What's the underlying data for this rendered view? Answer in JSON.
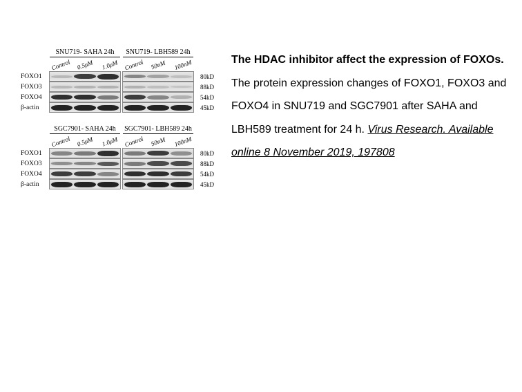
{
  "text": {
    "title": "The HDAC inhibitor affect the expression of FOXOs.",
    "body": "The protein expression changes of FOXO1, FOXO3 and FOXO4 in SNU719 and SGC7901 after SAHA and LBH589 treatment for 24 h. ",
    "citation": "Virus Research. Available online 8 November 2019, 197808"
  },
  "figure": {
    "panels": [
      {
        "headers": [
          "SNU719- SAHA 24h",
          "SNU719- LBH589 24h"
        ],
        "lanes_left": [
          "Control",
          "0.5μM",
          "1.0μM"
        ],
        "lanes_right": [
          "Control",
          "50nM",
          "100nM"
        ],
        "rows": [
          {
            "label": "FOXO1",
            "mw": "80kD",
            "bands_left": [
              {
                "i": 0.25,
                "h": 4
              },
              {
                "i": 0.85,
                "h": 7
              },
              {
                "i": 0.9,
                "h": 8
              }
            ],
            "bands_right": [
              {
                "i": 0.55,
                "h": 5
              },
              {
                "i": 0.4,
                "h": 5
              },
              {
                "i": 0.2,
                "h": 4
              }
            ]
          },
          {
            "label": "FOXO3",
            "mw": "88kD",
            "bands_left": [
              {
                "i": 0.25,
                "h": 4
              },
              {
                "i": 0.3,
                "h": 4
              },
              {
                "i": 0.3,
                "h": 4
              }
            ],
            "bands_right": [
              {
                "i": 0.3,
                "h": 4
              },
              {
                "i": 0.2,
                "h": 4
              },
              {
                "i": 0.15,
                "h": 3
              }
            ]
          },
          {
            "label": "FOXO4",
            "mw": "54kD",
            "bands_left": [
              {
                "i": 0.9,
                "h": 7
              },
              {
                "i": 0.9,
                "h": 7
              },
              {
                "i": 0.6,
                "h": 6
              }
            ],
            "bands_right": [
              {
                "i": 0.85,
                "h": 7
              },
              {
                "i": 0.55,
                "h": 6
              },
              {
                "i": 0.3,
                "h": 5
              }
            ]
          },
          {
            "label": "β-actin",
            "mw": "45kD",
            "bands_left": [
              {
                "i": 0.95,
                "h": 8
              },
              {
                "i": 0.95,
                "h": 8
              },
              {
                "i": 0.95,
                "h": 8
              }
            ],
            "bands_right": [
              {
                "i": 0.95,
                "h": 8
              },
              {
                "i": 0.95,
                "h": 8
              },
              {
                "i": 0.95,
                "h": 8
              }
            ]
          }
        ]
      },
      {
        "headers": [
          "SGC7901- SAHA 24h",
          "SGC7901- LBH589 24h"
        ],
        "lanes_left": [
          "Control",
          "0.5μM",
          "1.0μM"
        ],
        "lanes_right": [
          "Control",
          "50nM",
          "100nM"
        ],
        "rows": [
          {
            "label": "FOXO1",
            "mw": "80kD",
            "bands_left": [
              {
                "i": 0.55,
                "h": 6
              },
              {
                "i": 0.6,
                "h": 6
              },
              {
                "i": 0.9,
                "h": 8
              }
            ],
            "bands_right": [
              {
                "i": 0.6,
                "h": 6
              },
              {
                "i": 0.85,
                "h": 7
              },
              {
                "i": 0.5,
                "h": 6
              }
            ]
          },
          {
            "label": "FOXO3",
            "mw": "88kD",
            "bands_left": [
              {
                "i": 0.5,
                "h": 5
              },
              {
                "i": 0.55,
                "h": 5
              },
              {
                "i": 0.75,
                "h": 6
              }
            ],
            "bands_right": [
              {
                "i": 0.6,
                "h": 6
              },
              {
                "i": 0.8,
                "h": 7
              },
              {
                "i": 0.8,
                "h": 7
              }
            ]
          },
          {
            "label": "FOXO4",
            "mw": "54kD",
            "bands_left": [
              {
                "i": 0.85,
                "h": 7
              },
              {
                "i": 0.85,
                "h": 7
              },
              {
                "i": 0.55,
                "h": 6
              }
            ],
            "bands_right": [
              {
                "i": 0.9,
                "h": 7
              },
              {
                "i": 0.9,
                "h": 7
              },
              {
                "i": 0.85,
                "h": 7
              }
            ]
          },
          {
            "label": "β-actin",
            "mw": "45kD",
            "bands_left": [
              {
                "i": 0.95,
                "h": 8
              },
              {
                "i": 0.95,
                "h": 8
              },
              {
                "i": 0.95,
                "h": 8
              }
            ],
            "bands_right": [
              {
                "i": 0.95,
                "h": 8
              },
              {
                "i": 0.95,
                "h": 8
              },
              {
                "i": 0.95,
                "h": 8
              }
            ]
          }
        ]
      }
    ],
    "band_color": "#1a1a1a",
    "band_color_light": "#888888"
  }
}
